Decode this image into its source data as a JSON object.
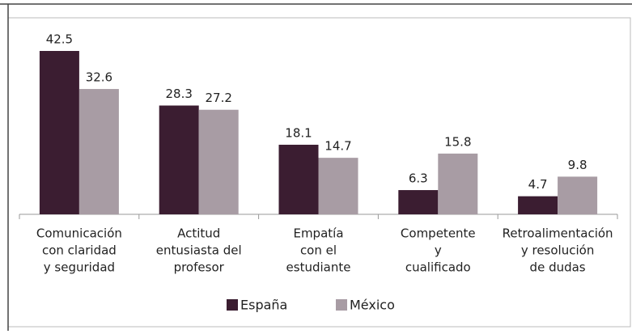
{
  "chart_data": {
    "type": "bar",
    "categories": [
      [
        "Comunicación",
        "con claridad",
        "y seguridad"
      ],
      [
        "Actitud",
        "entusiasta del",
        "profesor"
      ],
      [
        "Empatía",
        "con el",
        "estudiante"
      ],
      [
        "Competente",
        "y",
        "cualificado"
      ],
      [
        "Retroalimentación",
        "y resolución",
        "de dudas"
      ]
    ],
    "series": [
      {
        "name": "España",
        "color": "#3b1d31",
        "values": [
          42.5,
          28.3,
          18.1,
          6.3,
          4.7
        ]
      },
      {
        "name": "México",
        "color": "#a89ca4",
        "values": [
          32.6,
          27.2,
          14.7,
          15.8,
          9.8
        ]
      }
    ],
    "legend": "bottom"
  }
}
